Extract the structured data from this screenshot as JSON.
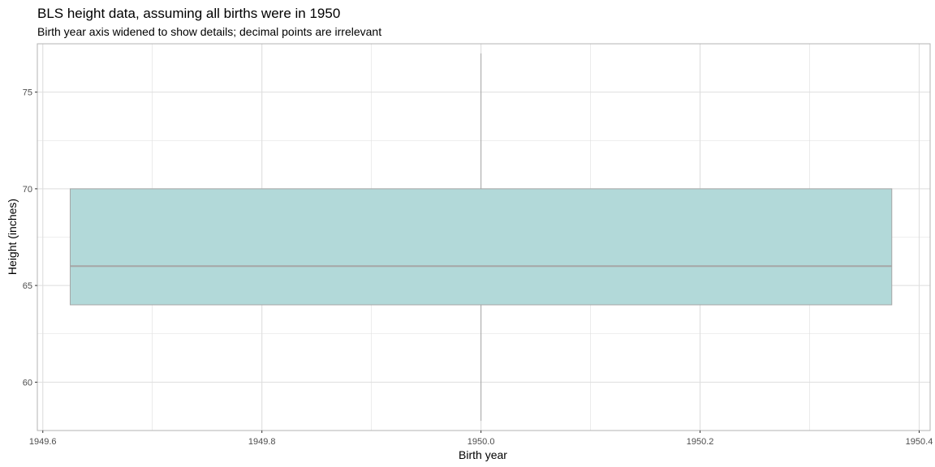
{
  "chart_data": {
    "type": "boxplot",
    "title": "BLS height data, assuming all births were in 1950",
    "subtitle": "Birth year axis widened to show details; decimal points are irrelevant",
    "xlabel": "Birth year",
    "ylabel": "Height (inches)",
    "xlim": [
      1949.595,
      1950.41
    ],
    "ylim": [
      57.5,
      77.5
    ],
    "x_ticks": [
      {
        "value": 1949.6,
        "label": "1949.6"
      },
      {
        "value": 1949.8,
        "label": "1949.8"
      },
      {
        "value": 1950.0,
        "label": "1950.0"
      },
      {
        "value": 1950.2,
        "label": "1950.2"
      },
      {
        "value": 1950.4,
        "label": "1950.4"
      }
    ],
    "x_minor_ticks": [
      1949.7,
      1949.9,
      1950.1,
      1950.3
    ],
    "y_ticks": [
      {
        "value": 60,
        "label": "60"
      },
      {
        "value": 65,
        "label": "65"
      },
      {
        "value": 70,
        "label": "70"
      },
      {
        "value": 75,
        "label": "75"
      }
    ],
    "y_minor_ticks": [
      57.5,
      62.5,
      67.5,
      72.5,
      77.5
    ],
    "grid": true,
    "box": {
      "x": 1950.0,
      "x_left": 1949.625,
      "x_right": 1950.375,
      "whisker_low": 58,
      "q1": 64,
      "median": 66,
      "q3": 70,
      "whisker_high": 77
    },
    "colors": {
      "box_fill": "#b2d9d9",
      "box_outline": "#a6a6a6",
      "grid": "#dedede",
      "panel_border": "#b3b3b3"
    }
  }
}
